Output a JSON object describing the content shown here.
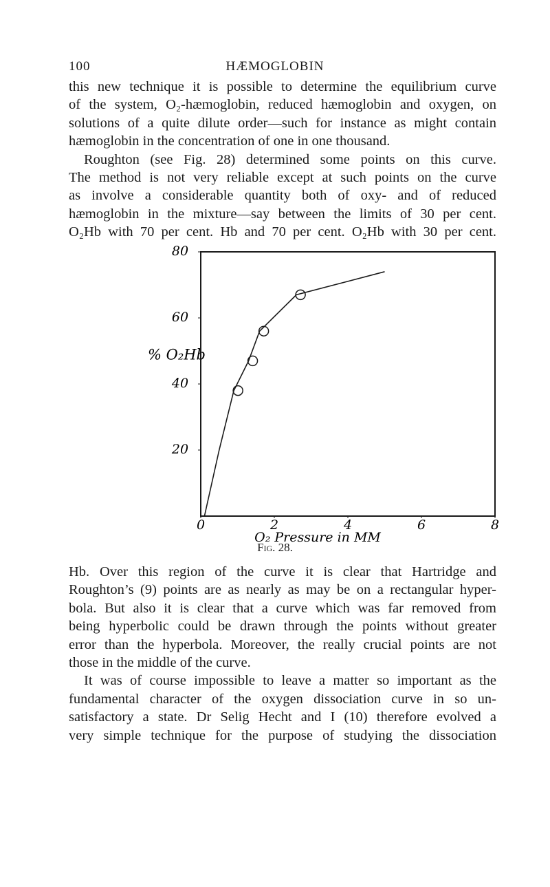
{
  "header": {
    "page_number": "100",
    "title": "HÆMOGLOBIN"
  },
  "text_top": [
    "this new technique it is possible to determine the equilibrium curve",
    "of the system, O₂-hæmoglobin, reduced hæmoglobin and oxygen, on",
    "solutions of a quite dilute order—such for instance as might contain",
    "hæmoglobin in the concentration of one in one thousand.",
    "Roughton (see Fig. 28) determined some points on this curve.",
    "The method is not very reliable except at such points on the curve",
    "as involve a considerable quantity both of oxy- and of reduced",
    "hæmoglobin in the mixture—say between the limits of 30 per cent.",
    "O₂Hb with 70 per cent. Hb and 70 per cent. O₂Hb with 30 per cent."
  ],
  "chart_data": {
    "type": "scatter",
    "ylabel": "% O₂Hb",
    "xlabel": "O₂ Pressure in MM",
    "xlim": [
      0,
      8
    ],
    "ylim": [
      0,
      80
    ],
    "xticks": [
      0,
      2,
      4,
      6,
      8
    ],
    "yticks": [
      20,
      40,
      60,
      80
    ],
    "points": {
      "x": [
        0.9,
        1.3,
        1.6,
        2.6
      ],
      "y": [
        38,
        47,
        56,
        67
      ]
    },
    "curve": {
      "x": [
        0.1,
        0.5,
        0.9,
        1.3,
        1.6,
        2.6,
        5.0
      ],
      "y": [
        0,
        20,
        38,
        47,
        56,
        67,
        74
      ]
    },
    "color": "#1a1a1a"
  },
  "caption": "Fig. 28.",
  "text_bottom": [
    "Hb. Over this region of the curve it is clear that Hartridge and",
    "Roughton’s (9) points are as nearly as may be on a rectangular hyper-",
    "bola. But also it is clear that a curve which was far removed from",
    "being hyperbolic could be drawn through the points without greater",
    "error than the hyperbola. Moreover, the really crucial points are not",
    "those in the middle of the curve.",
    "It was of course impossible to leave a matter so important as the",
    "fundamental character of the oxygen dissociation curve in so un-",
    "satisfactory a state. Dr Selig Hecht and I (10) therefore evolved a",
    "very simple technique for the purpose of studying the dissociation"
  ]
}
